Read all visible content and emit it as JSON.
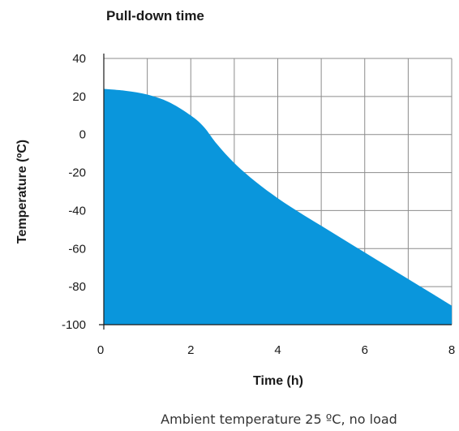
{
  "chart_data": {
    "type": "area",
    "title": "Pull-down time",
    "xlabel": "Time (h)",
    "ylabel": "Temperature (ºC)",
    "note": "Ambient temperature 25 ºC, no load",
    "xlim": [
      0,
      8
    ],
    "ylim": [
      -100,
      40
    ],
    "xticks": [
      0,
      2,
      4,
      6,
      8
    ],
    "yticks": [
      40,
      20,
      0,
      -20,
      -40,
      -60,
      -80,
      -100
    ],
    "x_grid_step": 1,
    "y_grid_step": 20,
    "grid": true,
    "fill_color": "#0a96dc",
    "series": [
      {
        "x": [
          0,
          0.5,
          1,
          1.5,
          2,
          2.3,
          2.6,
          3,
          3.5,
          4,
          4.5,
          5,
          5.5,
          6,
          6.5,
          7,
          7.5,
          8
        ],
        "values": [
          24,
          23,
          21,
          17,
          10,
          4,
          -5,
          -15,
          -25,
          -33.5,
          -41,
          -48,
          -55,
          -62,
          -69,
          -76,
          -83,
          -90
        ]
      }
    ]
  }
}
